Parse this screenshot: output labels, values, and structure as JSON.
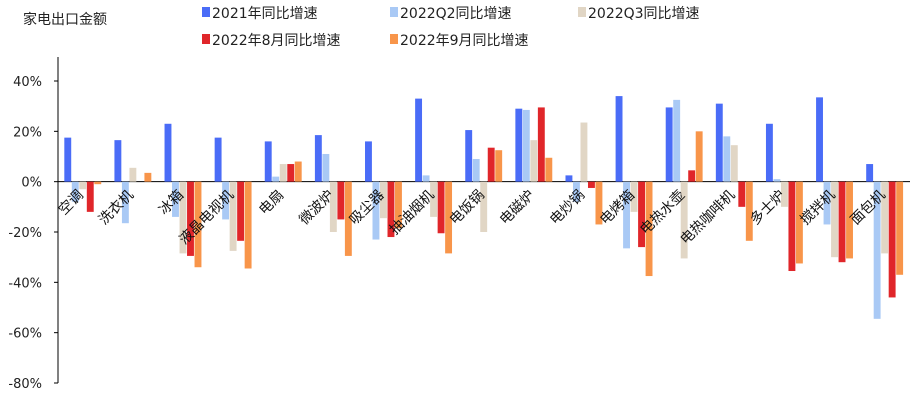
{
  "chart_data": {
    "type": "bar",
    "title": "家电出口金额",
    "ylim": [
      -80,
      40
    ],
    "ytick_labels": [
      "40%",
      "20%",
      "0%",
      "-20%",
      "-40%",
      "-60%",
      "-80%"
    ],
    "yticks": [
      40,
      20,
      0,
      -20,
      -40,
      -60,
      -80
    ],
    "grid": false,
    "legend_position": "top",
    "categories": [
      "空调",
      "洗衣机",
      "冰箱",
      "液晶电视机",
      "电扇",
      "微波炉",
      "吸尘器",
      "抽油烟机",
      "电饭锅",
      "电磁炉",
      "电炒锅",
      "电烤箱",
      "电热水壶",
      "电热咖啡机",
      "多士炉",
      "搅拌机",
      "面包机"
    ],
    "series": [
      {
        "name": "2021年同比增速",
        "color": "#4a6cf7",
        "values": [
          17.5,
          16.5,
          23,
          17.5,
          16,
          18.5,
          16,
          33,
          20.5,
          29,
          2.5,
          34,
          29.5,
          31,
          23,
          33.5,
          7
        ]
      },
      {
        "name": "2022Q2同比增速",
        "color": "#a9c9f5",
        "values": [
          -8,
          -16.5,
          -14,
          -15,
          2,
          11,
          -23,
          2.5,
          9,
          28.5,
          -8,
          -26.5,
          32.5,
          18,
          1,
          -17,
          -54.5
        ]
      },
      {
        "name": "2022Q3同比增速",
        "color": "#e1d6c5",
        "values": [
          -3,
          5.5,
          -28.5,
          -27.5,
          7,
          -20,
          -14.5,
          -14,
          -20,
          16.5,
          23.5,
          -12,
          -30.5,
          14.5,
          -10,
          -30,
          -28.5
        ]
      },
      {
        "name": "2022年8月同比增速",
        "color": "#e0262a",
        "values": [
          -12,
          0,
          -29.5,
          -23.5,
          7,
          -15,
          -22,
          -20.5,
          13.5,
          29.5,
          -2.5,
          -26,
          4.5,
          -10,
          -35.5,
          -32,
          -46
        ]
      },
      {
        "name": "2022年9月同比增速",
        "color": "#f8954a",
        "values": [
          -1,
          3.5,
          -34,
          -34.5,
          8,
          -29.5,
          -18.5,
          -28.5,
          12.5,
          9.5,
          -17,
          -37.5,
          20,
          -23.5,
          -32.5,
          -30.5,
          -37
        ]
      }
    ]
  }
}
